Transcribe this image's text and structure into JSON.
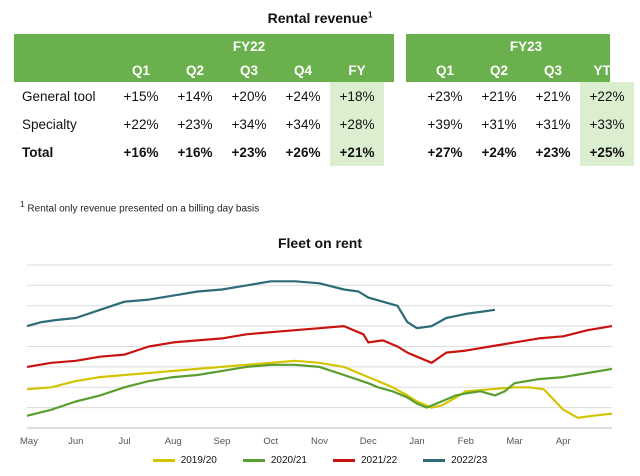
{
  "table": {
    "title": "Rental revenue",
    "title_sup": "1",
    "groups": [
      "FY22",
      "FY23"
    ],
    "fy22_cols": [
      "Q1",
      "Q2",
      "Q3",
      "Q4",
      "FY"
    ],
    "fy23_cols": [
      "Q1",
      "Q2",
      "Q3",
      "YTD"
    ],
    "rows": [
      {
        "label": "General tool",
        "fy22": [
          "+15%",
          "+14%",
          "+20%",
          "+24%",
          "+18%"
        ],
        "fy23": [
          "+23%",
          "+21%",
          "+21%",
          "+22%"
        ]
      },
      {
        "label": "Specialty",
        "fy22": [
          "+22%",
          "+23%",
          "+34%",
          "+34%",
          "+28%"
        ],
        "fy23": [
          "+39%",
          "+31%",
          "+31%",
          "+33%"
        ]
      },
      {
        "label": "Total",
        "fy22": [
          "+16%",
          "+16%",
          "+23%",
          "+26%",
          "+21%"
        ],
        "fy23": [
          "+27%",
          "+24%",
          "+23%",
          "+25%"
        ]
      }
    ],
    "footnote_sup": "1",
    "footnote": "Rental only revenue presented on a billing day basis",
    "colors": {
      "header": "#6ab04c",
      "highlight": "#dbeed0"
    }
  },
  "chart_data": {
    "type": "line",
    "title": "Fleet on rent",
    "x_ticks": [
      "May",
      "Jun",
      "Jul",
      "Aug",
      "Sep",
      "Oct",
      "Nov",
      "Dec",
      "Jan",
      "Feb",
      "Mar",
      "Apr"
    ],
    "xlim": [
      0,
      12
    ],
    "ylim": [
      0,
      8
    ],
    "grid_y": [
      1,
      2,
      3,
      4,
      5,
      6,
      7,
      8
    ],
    "series": [
      {
        "name": "2019/20",
        "color": "#d4c400",
        "points": [
          [
            0,
            1.9
          ],
          [
            0.5,
            2.0
          ],
          [
            1,
            2.3
          ],
          [
            1.5,
            2.5
          ],
          [
            2,
            2.6
          ],
          [
            2.5,
            2.7
          ],
          [
            3,
            2.8
          ],
          [
            3.5,
            2.9
          ],
          [
            4,
            3.0
          ],
          [
            4.5,
            3.1
          ],
          [
            5,
            3.2
          ],
          [
            5.5,
            3.3
          ],
          [
            6,
            3.2
          ],
          [
            6.5,
            3.0
          ],
          [
            7,
            2.5
          ],
          [
            7.2,
            2.3
          ],
          [
            7.5,
            2.0
          ],
          [
            7.8,
            1.6
          ],
          [
            8,
            1.3
          ],
          [
            8.3,
            1.0
          ],
          [
            8.5,
            1.1
          ],
          [
            8.8,
            1.5
          ],
          [
            9,
            1.8
          ],
          [
            9.5,
            1.9
          ],
          [
            10,
            2.0
          ],
          [
            10.3,
            2.0
          ],
          [
            10.6,
            1.9
          ],
          [
            11,
            0.9
          ],
          [
            11.3,
            0.5
          ],
          [
            11.6,
            0.6
          ],
          [
            12,
            0.7
          ]
        ]
      },
      {
        "name": "2020/21",
        "color": "#5a9e2f",
        "points": [
          [
            0,
            0.6
          ],
          [
            0.5,
            0.9
          ],
          [
            1,
            1.3
          ],
          [
            1.5,
            1.6
          ],
          [
            2,
            2.0
          ],
          [
            2.5,
            2.3
          ],
          [
            3,
            2.5
          ],
          [
            3.5,
            2.6
          ],
          [
            4,
            2.8
          ],
          [
            4.5,
            3.0
          ],
          [
            5,
            3.1
          ],
          [
            5.5,
            3.1
          ],
          [
            6,
            3.0
          ],
          [
            6.5,
            2.6
          ],
          [
            7,
            2.2
          ],
          [
            7.2,
            2.0
          ],
          [
            7.5,
            1.8
          ],
          [
            7.8,
            1.5
          ],
          [
            8,
            1.2
          ],
          [
            8.2,
            1.0
          ],
          [
            8.5,
            1.3
          ],
          [
            8.8,
            1.6
          ],
          [
            9,
            1.7
          ],
          [
            9.3,
            1.8
          ],
          [
            9.6,
            1.6
          ],
          [
            9.8,
            1.8
          ],
          [
            10,
            2.2
          ],
          [
            10.5,
            2.4
          ],
          [
            11,
            2.5
          ],
          [
            11.5,
            2.7
          ],
          [
            12,
            2.9
          ]
        ]
      },
      {
        "name": "2021/22",
        "color": "#c8140f",
        "points": [
          [
            0,
            3.0
          ],
          [
            0.5,
            3.2
          ],
          [
            1,
            3.3
          ],
          [
            1.5,
            3.5
          ],
          [
            2,
            3.6
          ],
          [
            2.5,
            4.0
          ],
          [
            3,
            4.2
          ],
          [
            3.5,
            4.3
          ],
          [
            4,
            4.4
          ],
          [
            4.5,
            4.6
          ],
          [
            5,
            4.7
          ],
          [
            5.5,
            4.8
          ],
          [
            6,
            4.9
          ],
          [
            6.5,
            5.0
          ],
          [
            6.9,
            4.6
          ],
          [
            7,
            4.2
          ],
          [
            7.3,
            4.3
          ],
          [
            7.6,
            4.0
          ],
          [
            7.8,
            3.7
          ],
          [
            8,
            3.5
          ],
          [
            8.3,
            3.2
          ],
          [
            8.6,
            3.7
          ],
          [
            9,
            3.8
          ],
          [
            9.5,
            4.0
          ],
          [
            10,
            4.2
          ],
          [
            10.5,
            4.4
          ],
          [
            11,
            4.5
          ],
          [
            11.5,
            4.8
          ],
          [
            12,
            5.0
          ]
        ]
      },
      {
        "name": "2022/23",
        "color": "#2e6b78",
        "points": [
          [
            0,
            5.0
          ],
          [
            0.3,
            5.2
          ],
          [
            0.6,
            5.3
          ],
          [
            1,
            5.4
          ],
          [
            1.5,
            5.8
          ],
          [
            2,
            6.2
          ],
          [
            2.5,
            6.3
          ],
          [
            3,
            6.5
          ],
          [
            3.5,
            6.7
          ],
          [
            4,
            6.8
          ],
          [
            4.5,
            7.0
          ],
          [
            5,
            7.2
          ],
          [
            5.5,
            7.2
          ],
          [
            6,
            7.1
          ],
          [
            6.5,
            6.8
          ],
          [
            6.8,
            6.7
          ],
          [
            7,
            6.4
          ],
          [
            7.3,
            6.2
          ],
          [
            7.6,
            6.0
          ],
          [
            7.8,
            5.2
          ],
          [
            8,
            4.9
          ],
          [
            8.3,
            5.0
          ],
          [
            8.6,
            5.4
          ],
          [
            9,
            5.6
          ],
          [
            9.3,
            5.7
          ],
          [
            9.6,
            5.8
          ]
        ]
      }
    ]
  }
}
